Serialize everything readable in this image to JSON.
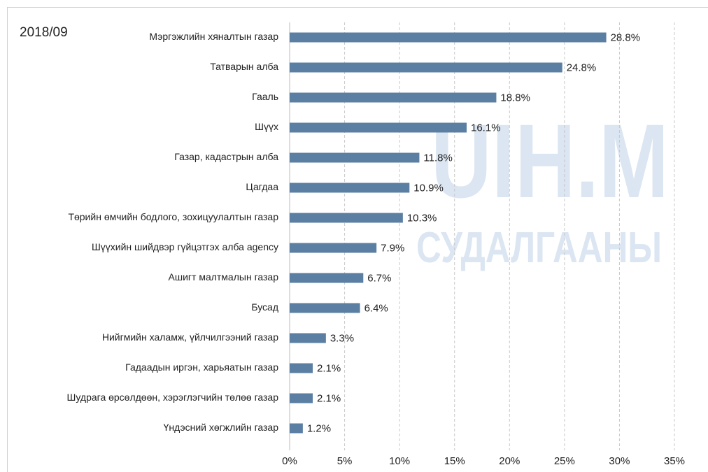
{
  "chart_data": {
    "type": "bar",
    "orientation": "horizontal",
    "title": "2018/09",
    "categories": [
      "Мэргэжлийн хяналтын газар",
      "Татварын алба",
      "Гааль",
      "Шүүх",
      "Газар, кадастрын алба",
      "Цагдаа",
      "Төрийн өмчийн бодлого, зохицуулалтын газар",
      "Шүүхийн шийдвэр гүйцэтгэх алба agency",
      "Ашигт малтмалын газар",
      "Бусад",
      "Нийгмийн халамж, үйлчилгээний газар",
      "Гадаадын иргэн, харьяатын газар",
      "Шудрага өрсөлдөөн, хэрэглэгчийн төлөө газар",
      "Үндэсний хөгжлийн газар"
    ],
    "values": [
      28.8,
      24.8,
      18.8,
      16.1,
      11.8,
      10.9,
      10.3,
      7.9,
      6.7,
      6.4,
      3.3,
      2.1,
      2.1,
      1.2
    ],
    "value_labels": [
      "28.8%",
      "24.8%",
      "18.8%",
      "16.1%",
      "11.8%",
      "10.9%",
      "10.3%",
      "7.9%",
      "6.7%",
      "6.4%",
      "3.3%",
      "2.1%",
      "2.1%",
      "1.2%"
    ],
    "color": "#5b7fa3",
    "xlim": [
      0,
      35
    ],
    "xticks": [
      {
        "value": 0,
        "label": "0%"
      },
      {
        "value": 5,
        "label": "5%"
      },
      {
        "value": 10,
        "label": "10%"
      },
      {
        "value": 15,
        "label": "15%"
      },
      {
        "value": 20,
        "label": "20%"
      },
      {
        "value": 25,
        "label": "25%"
      },
      {
        "value": 30,
        "label": "30%"
      },
      {
        "value": 35,
        "label": "35%"
      }
    ],
    "grid": true,
    "watermark": [
      "UIH.M",
      "СУДАЛГААНЫ"
    ]
  }
}
